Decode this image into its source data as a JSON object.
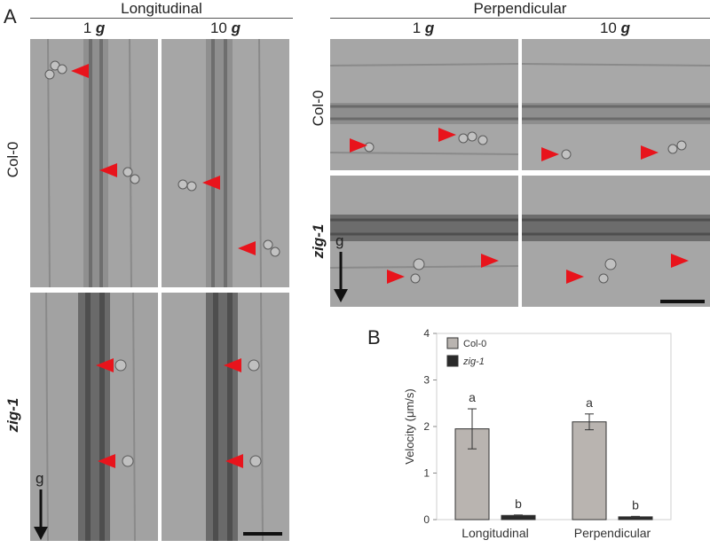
{
  "figure": {
    "panel_a": "A",
    "panel_b": "B",
    "groups": [
      "Longitudinal",
      "Perpendicular"
    ],
    "gravity_levels": [
      {
        "num": "1",
        "unit": "g"
      },
      {
        "num": "10",
        "unit": "g"
      }
    ],
    "rows": [
      "Col-0",
      "zig-1"
    ],
    "gravity_arrow_label": "g",
    "colors": {
      "arrowhead": "#e8141c",
      "col0_bar": "#b9b4b0",
      "zig1_bar": "#2a2a2a"
    }
  },
  "chart_data": {
    "type": "bar",
    "categories": [
      "Longitudinal",
      "Perpendicular"
    ],
    "series": [
      {
        "name": "Col-0",
        "values": [
          1.95,
          2.1
        ],
        "errors": [
          0.43,
          0.17
        ],
        "letters": [
          "a",
          "a"
        ],
        "color": "#b9b4b0"
      },
      {
        "name": "zig-1",
        "values": [
          0.09,
          0.06
        ],
        "errors": [
          0.01,
          0.01
        ],
        "letters": [
          "b",
          "b"
        ],
        "color": "#2a2a2a"
      }
    ],
    "ylabel": "Velocity (μm/s)",
    "ylim": [
      0,
      4
    ],
    "yticks": [
      "0",
      "1",
      "2",
      "3",
      "4"
    ],
    "legend_position": "top-left"
  }
}
